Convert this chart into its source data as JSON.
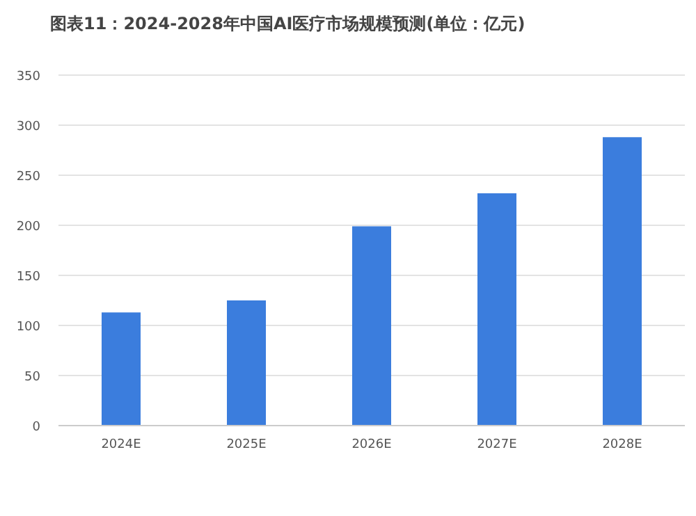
{
  "chart_data": {
    "type": "bar",
    "title": "图表11：2024-2028年中国AI医疗市场规模预测(单位：亿元)",
    "categories": [
      "2024E",
      "2025E",
      "2026E",
      "2027E",
      "2028E"
    ],
    "values": [
      113,
      125,
      199,
      232,
      288
    ],
    "color": "#3b7ddd",
    "ylim": [
      0,
      350
    ],
    "yticks": [
      0,
      50,
      100,
      150,
      200,
      250,
      300,
      350
    ],
    "grid": "y"
  }
}
